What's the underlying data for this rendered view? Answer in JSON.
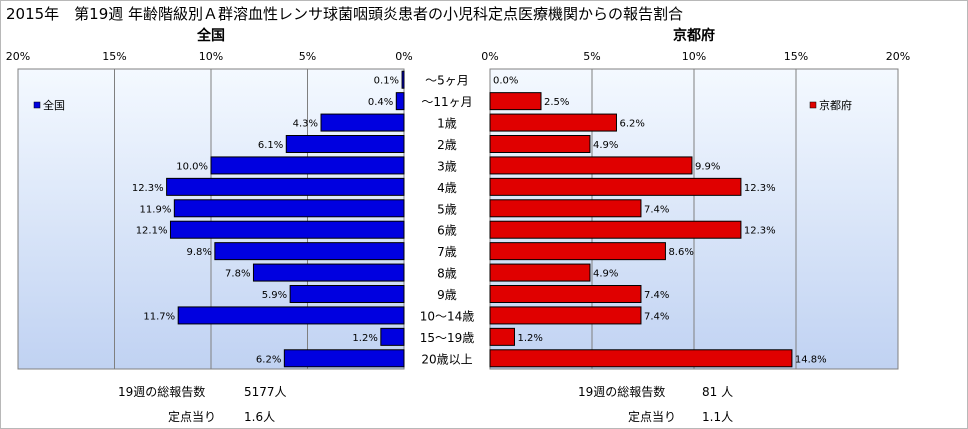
{
  "title": "2015年　第19週 年齢階級別Ａ群溶血性レンサ球菌咽頭炎患者の小児科定点医療機関からの報告割合",
  "colors": {
    "national": "#0000e0",
    "kyoto": "#e00000",
    "plot_bg_top": "#f4f9ff",
    "plot_bg_bottom": "#c0d2f2"
  },
  "footer": {
    "left_total_label": "19週の総報告数",
    "left_total_value": "5177人",
    "left_per_label": "定点当り",
    "left_per_value": "1.6人",
    "right_total_label": "19週の総報告数",
    "right_total_value": "81 人",
    "right_per_label": "定点当り",
    "right_per_value": "1.1人"
  },
  "chart_data": [
    {
      "type": "bar",
      "title": "全国",
      "legend": "全国",
      "legend_position": "top-left",
      "orientation": "horizontal-reversed",
      "xlim": [
        0,
        20
      ],
      "ticks": [
        "20%",
        "15%",
        "10%",
        "5%",
        "0%"
      ],
      "grid": true,
      "categories": [
        "～5ヶ月",
        "～11ヶ月",
        "1歳",
        "2歳",
        "3歳",
        "4歳",
        "5歳",
        "6歳",
        "7歳",
        "8歳",
        "9歳",
        "10～14歳",
        "15～19歳",
        "20歳以上"
      ],
      "values": [
        0.1,
        0.4,
        4.3,
        6.1,
        10.0,
        12.3,
        11.9,
        12.1,
        9.8,
        7.8,
        5.9,
        11.7,
        1.2,
        6.2
      ],
      "labels": [
        "0.1%",
        "0.4%",
        "4.3%",
        "6.1%",
        "10.0%",
        "12.3%",
        "11.9%",
        "12.1%",
        "9.8%",
        "7.8%",
        "5.9%",
        "11.7%",
        "1.2%",
        "6.2%"
      ]
    },
    {
      "type": "bar",
      "title": "京都府",
      "legend": "京都府",
      "legend_position": "top-right",
      "orientation": "horizontal",
      "xlim": [
        0,
        20
      ],
      "ticks": [
        "0%",
        "5%",
        "10%",
        "15%",
        "20%"
      ],
      "grid": true,
      "categories": [
        "～5ヶ月",
        "～11ヶ月",
        "1歳",
        "2歳",
        "3歳",
        "4歳",
        "5歳",
        "6歳",
        "7歳",
        "8歳",
        "9歳",
        "10～14歳",
        "15～19歳",
        "20歳以上"
      ],
      "values": [
        0.0,
        2.5,
        6.2,
        4.9,
        9.9,
        12.3,
        7.4,
        12.3,
        8.6,
        4.9,
        7.4,
        7.4,
        1.2,
        14.8
      ],
      "labels": [
        "0.0%",
        "2.5%",
        "6.2%",
        "4.9%",
        "9.9%",
        "12.3%",
        "7.4%",
        "12.3%",
        "8.6%",
        "4.9%",
        "7.4%",
        "7.4%",
        "1.2%",
        "14.8%"
      ]
    }
  ]
}
